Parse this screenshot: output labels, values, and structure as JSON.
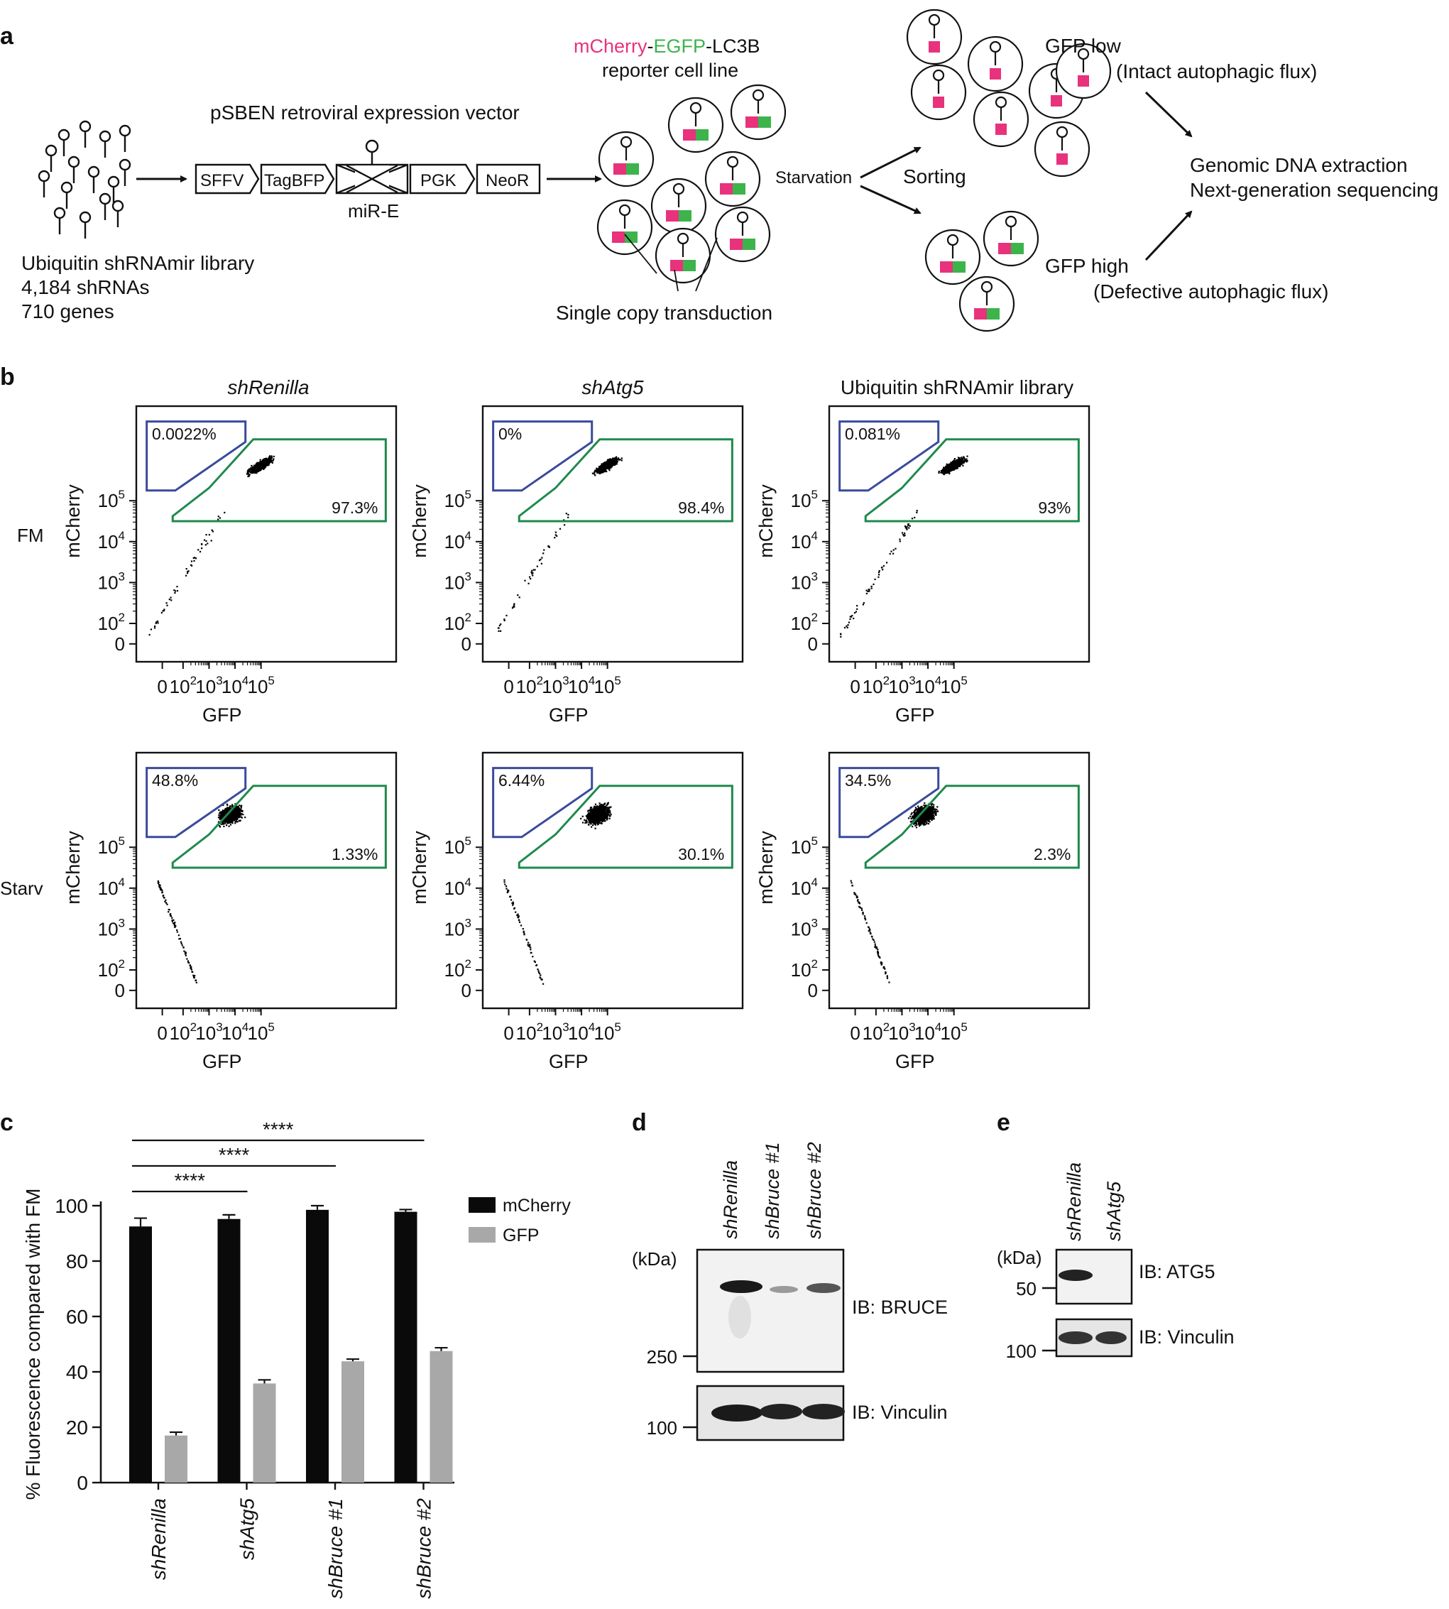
{
  "panels": {
    "a": {
      "label": "a",
      "library_lines": [
        "Ubiquitin shRNAmir library",
        "4,184 shRNAs",
        "710 genes"
      ],
      "vector_title": "pSBEN retroviral expression vector",
      "vector_parts": [
        "SFFV",
        "TagBFP",
        "PGK",
        "NeoR"
      ],
      "mir_label": "miR-E",
      "reporter_mcherry": "mCherry",
      "reporter_egfp": "EGFP",
      "reporter_lc3b": "LC3B",
      "reporter_sep": "-",
      "reporter_line2": "reporter cell line",
      "transduction": "Single copy transduction",
      "starvation": "Starvation",
      "sorting": "Sorting",
      "gfp_low": "GFP low",
      "gfp_low_desc": "(Intact autophagic flux)",
      "gfp_high": "GFP high",
      "gfp_high_desc": "(Defective autophagic flux)",
      "output_lines": [
        "Genomic DNA extraction",
        "Next-generation sequencing"
      ]
    },
    "b": {
      "label": "b",
      "columns": [
        "shRenilla",
        "shAtg5",
        "Ubiquitin shRNAmir library"
      ],
      "rows": [
        "FM",
        "Starv"
      ],
      "xlabel": "GFP",
      "ylabel": "mCherry",
      "tick_labels": [
        "0",
        "10",
        "10",
        "10",
        "10"
      ],
      "tick_exps": [
        "",
        "2",
        "3",
        "4",
        "5"
      ],
      "gates": [
        [
          {
            "low": "0.0022%",
            "high": "97.3%"
          },
          {
            "low": "0%",
            "high": "98.4%"
          },
          {
            "low": "0.081%",
            "high": "93%"
          }
        ],
        [
          {
            "low": "48.8%",
            "high": "1.33%"
          },
          {
            "low": "6.44%",
            "high": "30.1%"
          },
          {
            "low": "34.5%",
            "high": "2.3%"
          }
        ]
      ]
    },
    "c": {
      "label": "c"
    },
    "d": {
      "label": "d",
      "lanes": [
        "shRenilla",
        "shBruce #1",
        "shBruce #2"
      ],
      "kda": "(kDa)",
      "markers": [
        "250",
        "100"
      ],
      "ib1": "IB: BRUCE",
      "ib2": "IB: Vinculin"
    },
    "e": {
      "label": "e",
      "lanes": [
        "shRenilla",
        "shAtg5"
      ],
      "kda": "(kDa)",
      "markers": [
        "50",
        "100"
      ],
      "ib1": "IB: ATG5",
      "ib2": "IB: Vinculin"
    }
  },
  "colors": {
    "mcherry": "#e8327c",
    "egfp": "#3cb44b",
    "gfp_low_gate": "#3a4a9c",
    "gfp_high_gate": "#1e8a4c",
    "bar_mcherry": "#0a0a0a",
    "bar_gfp": "#a8a8a8"
  },
  "chart_data": {
    "type": "bar",
    "categories": [
      "shRenilla",
      "shAtg5",
      "shBruce #1",
      "shBruce #2"
    ],
    "series": [
      {
        "name": "mCherry",
        "values": [
          92.5,
          95.2,
          98.5,
          97.8
        ],
        "errors": [
          3.0,
          1.5,
          1.5,
          0.8
        ]
      },
      {
        "name": "GFP",
        "values": [
          17.0,
          35.8,
          43.8,
          47.5
        ],
        "errors": [
          1.2,
          1.3,
          0.8,
          1.2
        ]
      }
    ],
    "ylabel": "% Fluorescence compared with FM",
    "ylim": [
      0,
      100
    ],
    "yticks": [
      0,
      20,
      40,
      60,
      80,
      100
    ],
    "legend_position": "top-right",
    "significance": [
      {
        "from": "shRenilla",
        "to": "shAtg5",
        "label": "****"
      },
      {
        "from": "shRenilla",
        "to": "shBruce #1",
        "label": "****"
      },
      {
        "from": "shRenilla",
        "to": "shBruce #2",
        "label": "****"
      }
    ]
  }
}
